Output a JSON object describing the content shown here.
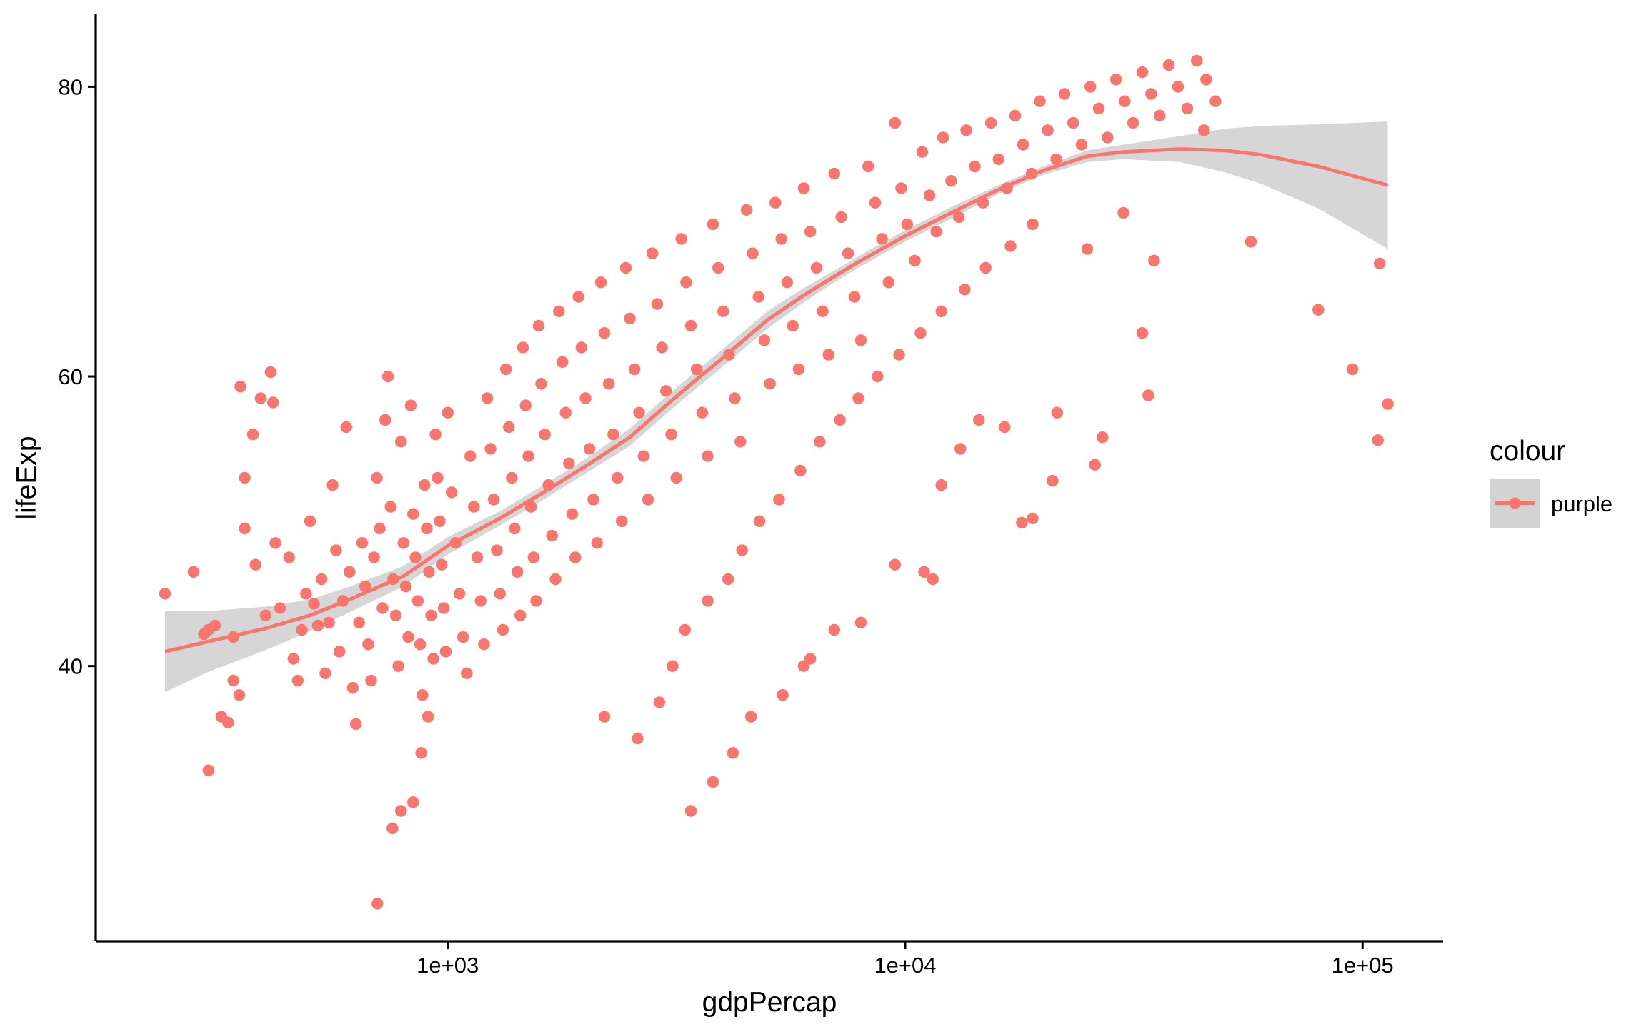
{
  "chart_data": {
    "type": "scatter",
    "title": "",
    "xlabel": "gdpPercap",
    "ylabel": "lifeExp",
    "x_scale": "log10",
    "xlim": [
      170,
      150000
    ],
    "ylim": [
      21,
      85
    ],
    "x_ticks": [
      {
        "value": 1000,
        "label": "1e+03"
      },
      {
        "value": 10000,
        "label": "1e+04"
      },
      {
        "value": 100000,
        "label": "1e+05"
      }
    ],
    "y_ticks": [
      {
        "value": 40,
        "label": "40"
      },
      {
        "value": 60,
        "label": "60"
      },
      {
        "value": 80,
        "label": "80"
      }
    ],
    "grid": false,
    "legend": {
      "title": "colour",
      "position": "right",
      "entries": [
        {
          "label": "purple",
          "color": "#F8766D"
        }
      ]
    },
    "colors": {
      "points": "#F8766D",
      "smooth_line": "#F8766D",
      "confidence_band": "#D3D3D3"
    },
    "smooth": {
      "method": "loess",
      "se": true,
      "x": [
        241,
        300,
        400,
        500,
        600,
        800,
        1000,
        1300,
        1600,
        2000,
        2500,
        3000,
        3500,
        4000,
        5000,
        6000,
        7000,
        8000,
        10000,
        13000,
        16000,
        20000,
        25000,
        30000,
        40000,
        50000,
        60000,
        80000,
        113523
      ],
      "y": [
        41.0,
        41.7,
        42.6,
        43.5,
        44.5,
        46.2,
        48.3,
        50.2,
        51.9,
        53.8,
        55.8,
        58.0,
        59.8,
        61.3,
        63.9,
        65.6,
        66.9,
        68.0,
        69.7,
        71.5,
        72.9,
        74.2,
        75.2,
        75.5,
        75.7,
        75.6,
        75.3,
        74.5,
        73.2
      ],
      "ymin": [
        38.2,
        39.6,
        41.1,
        42.4,
        43.6,
        45.5,
        47.7,
        49.7,
        51.4,
        53.3,
        55.2,
        57.4,
        59.2,
        60.7,
        63.3,
        65.1,
        66.5,
        67.6,
        69.3,
        71.1,
        72.6,
        73.9,
        74.8,
        75.0,
        74.8,
        74.1,
        73.3,
        71.6,
        68.8
      ],
      "ymax": [
        43.8,
        43.8,
        44.1,
        44.6,
        45.4,
        46.9,
        48.9,
        50.7,
        52.4,
        54.3,
        56.4,
        58.6,
        60.4,
        61.9,
        64.5,
        66.1,
        67.3,
        68.4,
        70.1,
        71.9,
        73.2,
        74.5,
        75.6,
        76.0,
        76.6,
        77.1,
        77.3,
        77.4,
        77.6
      ]
    },
    "points": [
      [
        241,
        45.0
      ],
      [
        278,
        46.5
      ],
      [
        293,
        42.2
      ],
      [
        300,
        42.5
      ],
      [
        310,
        42.8
      ],
      [
        331,
        36.1
      ],
      [
        340,
        39.0
      ],
      [
        352,
        59.3
      ],
      [
        360,
        53.0
      ],
      [
        375,
        56.0
      ],
      [
        390,
        58.5
      ],
      [
        400,
        43.5
      ],
      [
        410,
        60.3
      ],
      [
        415,
        58.2
      ],
      [
        300,
        32.8
      ],
      [
        320,
        36.5
      ],
      [
        340,
        42.0
      ],
      [
        350,
        38.0
      ],
      [
        360,
        49.5
      ],
      [
        380,
        47.0
      ],
      [
        420,
        48.5
      ],
      [
        430,
        44.0
      ],
      [
        450,
        47.5
      ],
      [
        460,
        40.5
      ],
      [
        470,
        39.0
      ],
      [
        480,
        42.5
      ],
      [
        490,
        45.0
      ],
      [
        500,
        50.0
      ],
      [
        510,
        44.3
      ],
      [
        520,
        42.8
      ],
      [
        530,
        46.0
      ],
      [
        540,
        39.5
      ],
      [
        550,
        43.0
      ],
      [
        560,
        52.5
      ],
      [
        570,
        48.0
      ],
      [
        580,
        41.0
      ],
      [
        590,
        44.5
      ],
      [
        600,
        56.5
      ],
      [
        610,
        46.5
      ],
      [
        620,
        38.5
      ],
      [
        630,
        36.0
      ],
      [
        640,
        43.0
      ],
      [
        650,
        48.5
      ],
      [
        660,
        45.5
      ],
      [
        670,
        41.5
      ],
      [
        680,
        39.0
      ],
      [
        690,
        47.5
      ],
      [
        700,
        53.0
      ],
      [
        710,
        49.5
      ],
      [
        720,
        44.0
      ],
      [
        730,
        57.0
      ],
      [
        740,
        60.0
      ],
      [
        750,
        51.0
      ],
      [
        760,
        46.0
      ],
      [
        770,
        43.5
      ],
      [
        780,
        40.0
      ],
      [
        790,
        55.5
      ],
      [
        800,
        48.5
      ],
      [
        810,
        45.5
      ],
      [
        820,
        42.0
      ],
      [
        830,
        58.0
      ],
      [
        840,
        50.5
      ],
      [
        850,
        47.5
      ],
      [
        860,
        44.5
      ],
      [
        870,
        41.5
      ],
      [
        880,
        38.0
      ],
      [
        890,
        52.5
      ],
      [
        900,
        49.5
      ],
      [
        910,
        46.5
      ],
      [
        920,
        43.5
      ],
      [
        930,
        40.5
      ],
      [
        940,
        56.0
      ],
      [
        950,
        53.0
      ],
      [
        960,
        50.0
      ],
      [
        970,
        47.0
      ],
      [
        980,
        44.0
      ],
      [
        990,
        41.0
      ],
      [
        1000,
        57.5
      ],
      [
        1020,
        52.0
      ],
      [
        1040,
        48.5
      ],
      [
        1060,
        45.0
      ],
      [
        1080,
        42.0
      ],
      [
        1100,
        39.5
      ],
      [
        1120,
        54.5
      ],
      [
        1140,
        51.0
      ],
      [
        1160,
        47.5
      ],
      [
        1180,
        44.5
      ],
      [
        1200,
        41.5
      ],
      [
        1220,
        58.5
      ],
      [
        1240,
        55.0
      ],
      [
        1260,
        51.5
      ],
      [
        1280,
        48.0
      ],
      [
        1300,
        45.0
      ],
      [
        1320,
        42.5
      ],
      [
        1340,
        60.5
      ],
      [
        1360,
        56.5
      ],
      [
        1380,
        53.0
      ],
      [
        1400,
        49.5
      ],
      [
        1420,
        46.5
      ],
      [
        1440,
        43.5
      ],
      [
        1460,
        62.0
      ],
      [
        1480,
        58.0
      ],
      [
        1500,
        54.5
      ],
      [
        1520,
        51.0
      ],
      [
        1540,
        47.5
      ],
      [
        1560,
        44.5
      ],
      [
        1580,
        63.5
      ],
      [
        1600,
        59.5
      ],
      [
        1630,
        56.0
      ],
      [
        1660,
        52.5
      ],
      [
        1690,
        49.0
      ],
      [
        1720,
        46.0
      ],
      [
        1750,
        64.5
      ],
      [
        1780,
        61.0
      ],
      [
        1810,
        57.5
      ],
      [
        1840,
        54.0
      ],
      [
        1870,
        50.5
      ],
      [
        1900,
        47.5
      ],
      [
        1930,
        65.5
      ],
      [
        1960,
        62.0
      ],
      [
        2000,
        58.5
      ],
      [
        2040,
        55.0
      ],
      [
        2080,
        51.5
      ],
      [
        2120,
        48.5
      ],
      [
        2160,
        66.5
      ],
      [
        2200,
        63.0
      ],
      [
        2250,
        59.5
      ],
      [
        2300,
        56.0
      ],
      [
        2350,
        53.0
      ],
      [
        2400,
        50.0
      ],
      [
        2450,
        67.5
      ],
      [
        2500,
        64.0
      ],
      [
        2560,
        60.5
      ],
      [
        2620,
        57.5
      ],
      [
        2680,
        54.5
      ],
      [
        2740,
        51.5
      ],
      [
        2800,
        68.5
      ],
      [
        2870,
        65.0
      ],
      [
        2940,
        62.0
      ],
      [
        3000,
        59.0
      ],
      [
        3080,
        56.0
      ],
      [
        3160,
        53.0
      ],
      [
        3240,
        69.5
      ],
      [
        3320,
        66.5
      ],
      [
        3400,
        63.5
      ],
      [
        3500,
        60.5
      ],
      [
        3600,
        57.5
      ],
      [
        3700,
        54.5
      ],
      [
        3800,
        70.5
      ],
      [
        3900,
        67.5
      ],
      [
        4000,
        64.5
      ],
      [
        4120,
        61.5
      ],
      [
        4240,
        58.5
      ],
      [
        4360,
        55.5
      ],
      [
        4500,
        71.5
      ],
      [
        4640,
        68.5
      ],
      [
        4780,
        65.5
      ],
      [
        4920,
        62.5
      ],
      [
        5060,
        59.5
      ],
      [
        5200,
        72.0
      ],
      [
        5360,
        69.5
      ],
      [
        5520,
        66.5
      ],
      [
        5680,
        63.5
      ],
      [
        5850,
        60.5
      ],
      [
        6000,
        73.0
      ],
      [
        6200,
        70.0
      ],
      [
        6400,
        67.5
      ],
      [
        6600,
        64.5
      ],
      [
        6800,
        61.5
      ],
      [
        7000,
        74.0
      ],
      [
        7250,
        71.0
      ],
      [
        7500,
        68.5
      ],
      [
        7750,
        65.5
      ],
      [
        8000,
        62.5
      ],
      [
        8300,
        74.5
      ],
      [
        8600,
        72.0
      ],
      [
        8900,
        69.5
      ],
      [
        9200,
        66.5
      ],
      [
        9500,
        77.5
      ],
      [
        9800,
        73.0
      ],
      [
        10100,
        70.5
      ],
      [
        10500,
        68.0
      ],
      [
        10900,
        75.5
      ],
      [
        11300,
        72.5
      ],
      [
        11700,
        70.0
      ],
      [
        12100,
        76.5
      ],
      [
        12600,
        73.5
      ],
      [
        13100,
        71.0
      ],
      [
        13600,
        77.0
      ],
      [
        14200,
        74.5
      ],
      [
        14800,
        72.0
      ],
      [
        15400,
        77.5
      ],
      [
        16000,
        75.0
      ],
      [
        16700,
        73.0
      ],
      [
        17400,
        78.0
      ],
      [
        18100,
        76.0
      ],
      [
        18900,
        74.0
      ],
      [
        19700,
        79.0
      ],
      [
        20500,
        77.0
      ],
      [
        21400,
        75.0
      ],
      [
        22300,
        79.5
      ],
      [
        23300,
        77.5
      ],
      [
        24300,
        76.0
      ],
      [
        25400,
        80.0
      ],
      [
        26500,
        78.5
      ],
      [
        27700,
        76.5
      ],
      [
        28900,
        80.5
      ],
      [
        30200,
        79.0
      ],
      [
        31500,
        77.5
      ],
      [
        33000,
        81.0
      ],
      [
        34500,
        79.5
      ],
      [
        36000,
        78.0
      ],
      [
        37700,
        81.5
      ],
      [
        39500,
        80.0
      ],
      [
        41400,
        78.5
      ],
      [
        43400,
        81.8
      ],
      [
        45500,
        80.5
      ],
      [
        47700,
        79.0
      ],
      [
        25000,
        68.8
      ],
      [
        30000,
        71.3
      ],
      [
        33000,
        63.0
      ],
      [
        34000,
        58.7
      ],
      [
        35000,
        68.0
      ],
      [
        45000,
        77.0
      ],
      [
        57000,
        69.3
      ],
      [
        80000,
        64.6
      ],
      [
        95000,
        60.5
      ],
      [
        108000,
        55.6
      ],
      [
        109000,
        67.8
      ],
      [
        113523,
        58.1
      ],
      [
        702,
        23.6
      ],
      [
        757,
        28.8
      ],
      [
        790,
        30.0
      ],
      [
        840,
        30.6
      ],
      [
        875,
        34.0
      ],
      [
        905,
        36.5
      ],
      [
        3400,
        30.0
      ],
      [
        3800,
        32.0
      ],
      [
        4200,
        34.0
      ],
      [
        4600,
        36.5
      ],
      [
        5400,
        38.0
      ],
      [
        6000,
        40.0
      ],
      [
        6200,
        40.5
      ],
      [
        7000,
        42.5
      ],
      [
        8000,
        43.0
      ],
      [
        9500,
        47.0
      ],
      [
        11000,
        46.5
      ],
      [
        11500,
        46.0
      ],
      [
        12000,
        52.5
      ],
      [
        13200,
        55.0
      ],
      [
        14500,
        57.0
      ],
      [
        16500,
        56.5
      ],
      [
        18000,
        49.9
      ],
      [
        19000,
        50.2
      ],
      [
        21000,
        52.8
      ],
      [
        21500,
        57.5
      ],
      [
        26000,
        53.9
      ],
      [
        27000,
        55.8
      ],
      [
        2200,
        36.5
      ],
      [
        2600,
        35.0
      ],
      [
        2900,
        37.5
      ],
      [
        3100,
        40.0
      ],
      [
        3300,
        42.5
      ],
      [
        3700,
        44.5
      ],
      [
        4100,
        46.0
      ],
      [
        4400,
        48.0
      ],
      [
        4800,
        50.0
      ],
      [
        5300,
        51.5
      ],
      [
        5900,
        53.5
      ],
      [
        6500,
        55.5
      ],
      [
        7200,
        57.0
      ],
      [
        7900,
        58.5
      ],
      [
        8700,
        60.0
      ],
      [
        9700,
        61.5
      ],
      [
        10800,
        63.0
      ],
      [
        12000,
        64.5
      ],
      [
        13500,
        66.0
      ],
      [
        15000,
        67.5
      ],
      [
        17000,
        69.0
      ],
      [
        19000,
        70.5
      ]
    ]
  }
}
